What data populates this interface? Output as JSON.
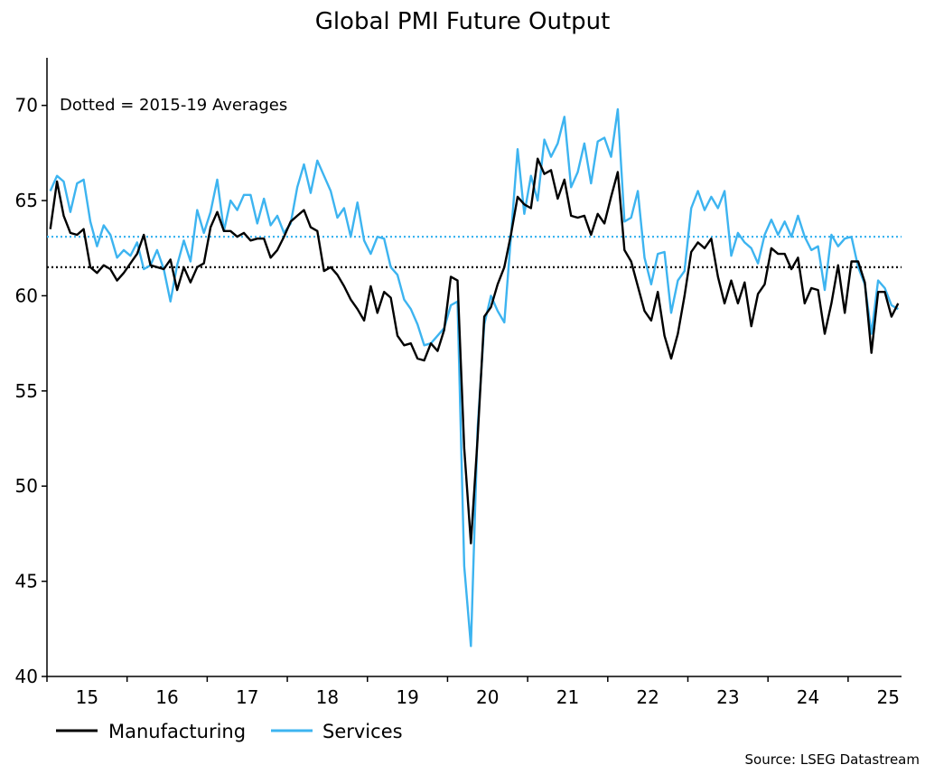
{
  "chart_data": {
    "type": "line",
    "title": "Global PMI Future Output",
    "annotation": "Dotted = 2015-19 Averages",
    "source": "Source: LSEG Datastream",
    "x_start": "2015-01",
    "x_tick_labels": [
      "15",
      "16",
      "17",
      "18",
      "19",
      "20",
      "21",
      "22",
      "23",
      "24",
      "25"
    ],
    "y_tick_labels": [
      "40",
      "45",
      "50",
      "55",
      "60",
      "65",
      "70"
    ],
    "ylim": [
      40,
      72.5
    ],
    "legend_position": "bottom-left",
    "series": [
      {
        "name": "Manufacturing",
        "color": "#000000",
        "values": [
          63.5,
          66.0,
          64.2,
          63.3,
          63.2,
          63.5,
          61.5,
          61.2,
          61.6,
          61.4,
          60.8,
          61.2,
          61.7,
          62.2,
          63.2,
          61.6,
          61.5,
          61.4,
          61.9,
          60.3,
          61.5,
          60.7,
          61.5,
          61.7,
          63.6,
          64.4,
          63.4,
          63.4,
          63.1,
          63.3,
          62.9,
          63.0,
          63.0,
          62.0,
          62.4,
          63.1,
          63.9,
          64.2,
          64.5,
          63.6,
          63.4,
          61.3,
          61.5,
          61.1,
          60.5,
          59.8,
          59.3,
          58.7,
          60.5,
          59.1,
          60.2,
          59.9,
          57.9,
          57.4,
          57.5,
          56.7,
          56.6,
          57.5,
          57.1,
          58.2,
          61.0,
          60.8,
          52.0,
          47.0,
          52.5,
          58.9,
          59.4,
          60.6,
          61.5,
          63.2,
          65.2,
          64.8,
          64.6,
          67.2,
          66.4,
          66.6,
          65.1,
          66.1,
          64.2,
          64.1,
          64.2,
          63.2,
          64.3,
          63.8,
          65.2,
          66.5,
          62.4,
          61.8,
          60.5,
          59.2,
          58.7,
          60.2,
          57.9,
          56.7,
          58.0,
          60.0,
          62.3,
          62.8,
          62.5,
          63.0,
          61.0,
          59.6,
          60.8,
          59.6,
          60.7,
          58.4,
          60.1,
          60.6,
          62.5,
          62.2,
          62.2,
          61.4,
          62.0,
          59.6,
          60.4,
          60.3,
          58.0,
          59.6,
          61.6,
          59.1,
          61.8,
          61.8,
          60.7,
          57.0,
          60.2,
          60.2,
          58.9,
          59.6
        ]
      },
      {
        "name": "Services",
        "color": "#3db4f0",
        "values": [
          65.5,
          66.3,
          66.0,
          64.4,
          65.9,
          66.1,
          63.9,
          62.6,
          63.7,
          63.2,
          62.0,
          62.4,
          62.1,
          62.8,
          61.4,
          61.6,
          62.4,
          61.4,
          59.7,
          61.6,
          62.9,
          61.8,
          64.5,
          63.3,
          64.4,
          66.1,
          63.4,
          65.0,
          64.5,
          65.3,
          65.3,
          63.8,
          65.1,
          63.7,
          64.2,
          63.3,
          63.8,
          65.7,
          66.9,
          65.4,
          67.1,
          66.3,
          65.5,
          64.1,
          64.6,
          63.1,
          64.9,
          62.9,
          62.2,
          63.1,
          63.0,
          61.5,
          61.1,
          59.8,
          59.3,
          58.5,
          57.4,
          57.5,
          57.9,
          58.3,
          59.5,
          59.7,
          45.8,
          41.6,
          53.0,
          58.5,
          60.0,
          59.2,
          58.6,
          63.1,
          67.7,
          64.3,
          66.3,
          65.0,
          68.2,
          67.3,
          68.0,
          69.4,
          65.7,
          66.5,
          68.0,
          65.9,
          68.1,
          68.3,
          67.3,
          69.8,
          63.9,
          64.1,
          65.5,
          62.0,
          60.6,
          62.2,
          62.3,
          59.1,
          60.8,
          61.3,
          64.6,
          65.5,
          64.5,
          65.2,
          64.6,
          65.5,
          62.1,
          63.3,
          62.8,
          62.5,
          61.7,
          63.2,
          64.0,
          63.2,
          63.9,
          63.1,
          64.2,
          63.1,
          62.4,
          62.6,
          60.3,
          63.2,
          62.6,
          63.0,
          63.1,
          61.5,
          60.6,
          58.0,
          60.8,
          60.4,
          59.5,
          59.3
        ]
      }
    ],
    "reference_lines": [
      {
        "series": "Manufacturing",
        "value": 61.5,
        "style": "dotted",
        "color": "#000000"
      },
      {
        "series": "Services",
        "value": 63.1,
        "style": "dotted",
        "color": "#3db4f0"
      }
    ]
  }
}
